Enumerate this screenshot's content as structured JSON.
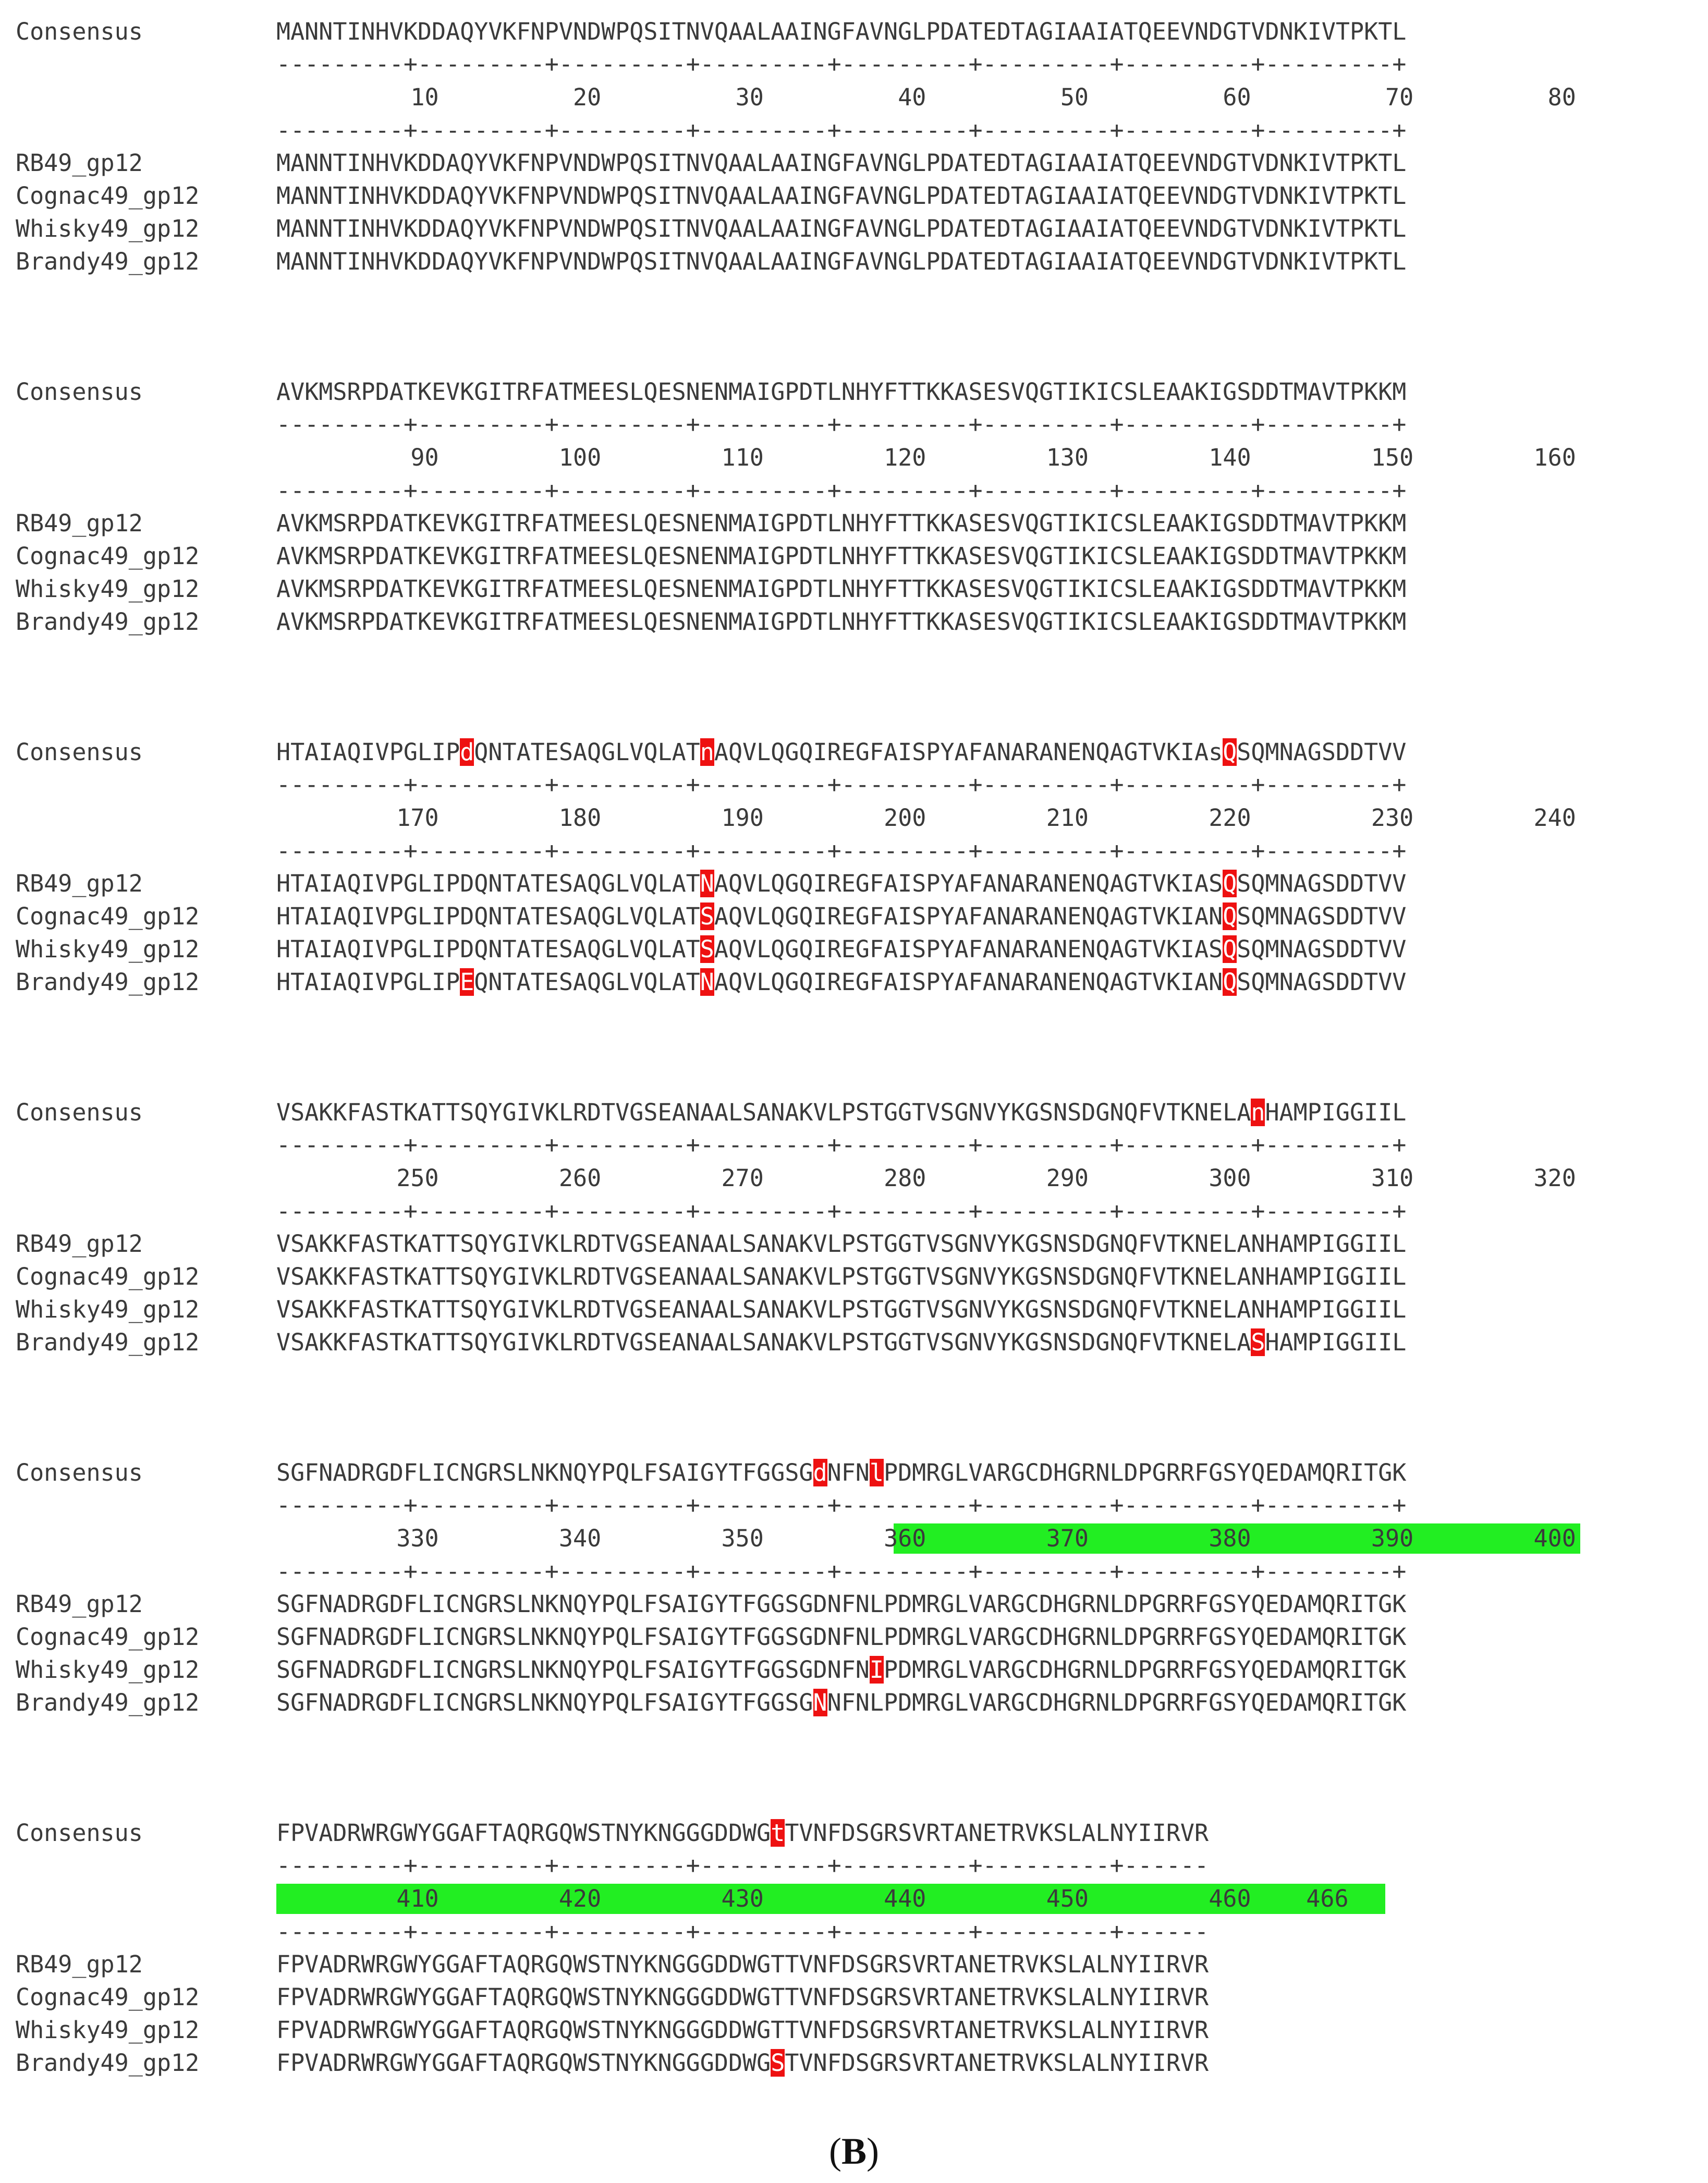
{
  "figure": {
    "caption_open": "(",
    "caption_letter": "B",
    "caption_close": ")"
  },
  "colors": {
    "highlight_bg": "#ee1111",
    "highlight_fg": "#ffffff",
    "range_band": "#22ee22",
    "text": "#3a3a3a"
  },
  "blocks": [
    {
      "consensus_label": "Consensus",
      "consensus": "MANNTINHVKDDAQYVKFNPVNDWPQSITNVQAALAAINGFAVNGLPDATEDTAGIAAIATQEEVNDGTVDNKIVTPKTL",
      "consensus_hl": [],
      "ruler_dashes": "---------+---------+---------+---------+---------+---------+---------+---------+",
      "ticks": [
        "10",
        "20",
        "30",
        "40",
        "50",
        "60",
        "70",
        "80"
      ],
      "band": null,
      "rows": [
        {
          "label": "RB49_gp12",
          "seq": "MANNTINHVKDDAQYVKFNPVNDWPQSITNVQAALAAINGFAVNGLPDATEDTAGIAAIATQEEVNDGTVDNKIVTPKTL",
          "hl": []
        },
        {
          "label": "Cognac49_gp12",
          "seq": "MANNTINHVKDDAQYVKFNPVNDWPQSITNVQAALAAINGFAVNGLPDATEDTAGIAAIATQEEVNDGTVDNKIVTPKTL",
          "hl": []
        },
        {
          "label": "Whisky49_gp12",
          "seq": "MANNTINHVKDDAQYVKFNPVNDWPQSITNVQAALAAINGFAVNGLPDATEDTAGIAAIATQEEVNDGTVDNKIVTPKTL",
          "hl": []
        },
        {
          "label": "Brandy49_gp12",
          "seq": "MANNTINHVKDDAQYVKFNPVNDWPQSITNVQAALAAINGFAVNGLPDATEDTAGIAAIATQEEVNDGTVDNKIVTPKTL",
          "hl": []
        }
      ]
    },
    {
      "consensus_label": "Consensus",
      "consensus": "AVKMSRPDATKEVKGITRFATMEESLQESNENMAIGPDTLNHYFTTKKASESVQGTIKICSLEAAKIGSDDTMAVTPKKM",
      "consensus_hl": [],
      "ruler_dashes": "---------+---------+---------+---------+---------+---------+---------+---------+",
      "ticks": [
        "90",
        "100",
        "110",
        "120",
        "130",
        "140",
        "150",
        "160"
      ],
      "band": null,
      "rows": [
        {
          "label": "RB49_gp12",
          "seq": "AVKMSRPDATKEVKGITRFATMEESLQESNENMAIGPDTLNHYFTTKKASESVQGTIKICSLEAAKIGSDDTMAVTPKKM",
          "hl": []
        },
        {
          "label": "Cognac49_gp12",
          "seq": "AVKMSRPDATKEVKGITRFATMEESLQESNENMAIGPDTLNHYFTTKKASESVQGTIKICSLEAAKIGSDDTMAVTPKKM",
          "hl": []
        },
        {
          "label": "Whisky49_gp12",
          "seq": "AVKMSRPDATKEVKGITRFATMEESLQESNENMAIGPDTLNHYFTTKKASESVQGTIKICSLEAAKIGSDDTMAVTPKKM",
          "hl": []
        },
        {
          "label": "Brandy49_gp12",
          "seq": "AVKMSRPDATKEVKGITRFATMEESLQESNENMAIGPDTLNHYFTTKKASESVQGTIKICSLEAAKIGSDDTMAVTPKKM",
          "hl": []
        }
      ]
    },
    {
      "consensus_label": "Consensus",
      "consensus": "HTAIAQIVPGLIPdQNTATESAQGLVQLATnAQVLQGQIREGFAISPYAFANARANENQAGTVKIAsQSQMNAGSDDTVV",
      "consensus_hl": [
        13,
        30,
        67
      ],
      "ruler_dashes": "---------+---------+---------+---------+---------+---------+---------+---------+",
      "ticks": [
        "170",
        "180",
        "190",
        "200",
        "210",
        "220",
        "230",
        "240"
      ],
      "band": null,
      "rows": [
        {
          "label": "RB49_gp12",
          "seq": "HTAIAQIVPGLIPDQNTATESAQGLVQLATNAQVLQGQIREGFAISPYAFANARANENQAGTVKIASQSQMNAGSDDTVV",
          "hl": [
            30,
            67
          ]
        },
        {
          "label": "Cognac49_gp12",
          "seq": "HTAIAQIVPGLIPDQNTATESAQGLVQLATSAQVLQGQIREGFAISPYAFANARANENQAGTVKIANQSQMNAGSDDTVV",
          "hl": [
            30,
            67
          ]
        },
        {
          "label": "Whisky49_gp12",
          "seq": "HTAIAQIVPGLIPDQNTATESAQGLVQLATSAQVLQGQIREGFAISPYAFANARANENQAGTVKIASQSQMNAGSDDTVV",
          "hl": [
            30,
            67
          ]
        },
        {
          "label": "Brandy49_gp12",
          "seq": "HTAIAQIVPGLIPEQNTATESAQGLVQLATNAQVLQGQIREGFAISPYAFANARANENQAGTVKIANQSQMNAGSDDTVV",
          "hl": [
            13,
            30,
            67
          ]
        }
      ]
    },
    {
      "consensus_label": "Consensus",
      "consensus": "VSAKKFASTKATTSQYGIVKLRDTVGSEANAALSANAKVLPSTGGTVSGNVYKGSNSDGNQFVTKNELAnHAMPIGGIIL",
      "consensus_hl": [
        69
      ],
      "ruler_dashes": "---------+---------+---------+---------+---------+---------+---------+---------+",
      "ticks": [
        "250",
        "260",
        "270",
        "280",
        "290",
        "300",
        "310",
        "320"
      ],
      "band": null,
      "rows": [
        {
          "label": "RB49_gp12",
          "seq": "VSAKKFASTKATTSQYGIVKLRDTVGSEANAALSANAKVLPSTGGTVSGNVYKGSNSDGNQFVTKNELANHAMPIGGIIL",
          "hl": []
        },
        {
          "label": "Cognac49_gp12",
          "seq": "VSAKKFASTKATTSQYGIVKLRDTVGSEANAALSANAKVLPSTGGTVSGNVYKGSNSDGNQFVTKNELANHAMPIGGIIL",
          "hl": []
        },
        {
          "label": "Whisky49_gp12",
          "seq": "VSAKKFASTKATTSQYGIVKLRDTVGSEANAALSANAKVLPSTGGTVSGNVYKGSNSDGNQFVTKNELANHAMPIGGIIL",
          "hl": []
        },
        {
          "label": "Brandy49_gp12",
          "seq": "VSAKKFASTKATTSQYGIVKLRDTVGSEANAALSANAKVLPSTGGTVSGNVYKGSNSDGNQFVTKNELASHAMPIGGIIL",
          "hl": [
            69
          ]
        }
      ]
    },
    {
      "consensus_label": "Consensus",
      "consensus": "SGFNADRGDFLICNGRSLNKNQYPQLFSAIGYTFGGSGdNFNlPDMRGLVARGCDHGRNLDPGRRFGSYQEDAMQRITGK",
      "consensus_hl": [
        38,
        42
      ],
      "ruler_dashes": "---------+---------+---------+---------+---------+---------+---------+---------+",
      "ticks": [
        "330",
        "340",
        "350",
        "360",
        "370",
        "380",
        "390",
        "400"
      ],
      "band": {
        "from_residue": 358,
        "to_residue": 400
      },
      "rows": [
        {
          "label": "RB49_gp12",
          "seq": "SGFNADRGDFLICNGRSLNKNQYPQLFSAIGYTFGGSGDNFNLPDMRGLVARGCDHGRNLDPGRRFGSYQEDAMQRITGK",
          "hl": []
        },
        {
          "label": "Cognac49_gp12",
          "seq": "SGFNADRGDFLICNGRSLNKNQYPQLFSAIGYTFGGSGDNFNLPDMRGLVARGCDHGRNLDPGRRFGSYQEDAMQRITGK",
          "hl": []
        },
        {
          "label": "Whisky49_gp12",
          "seq": "SGFNADRGDFLICNGRSLNKNQYPQLFSAIGYTFGGSGDNFNIPDMRGLVARGCDHGRNLDPGRRFGSYQEDAMQRITGK",
          "hl": [
            42
          ]
        },
        {
          "label": "Brandy49_gp12",
          "seq": "SGFNADRGDFLICNGRSLNKNQYPQLFSAIGYTFGGSGNNFNLPDMRGLVARGCDHGRNLDPGRRFGSYQEDAMQRITGK",
          "hl": [
            38
          ]
        }
      ]
    },
    {
      "consensus_label": "Consensus",
      "consensus": "FPVADRWRGWYGGAFTAQRGQWSTNYKNGGGDDWGtTVNFDSGRSVRTANETRVKSLALNYIIRVR",
      "consensus_hl": [
        35
      ],
      "ruler_dashes": "---------+---------+---------+---------+---------+---------+------",
      "ticks": [
        "410",
        "420",
        "430",
        "440",
        "450",
        "460",
        "466"
      ],
      "band": {
        "from_residue": 400,
        "to_residue": 468
      },
      "rows": [
        {
          "label": "RB49_gp12",
          "seq": "FPVADRWRGWYGGAFTAQRGQWSTNYKNGGGDDWGTTVNFDSGRSVRTANETRVKSLALNYIIRVR",
          "hl": []
        },
        {
          "label": "Cognac49_gp12",
          "seq": "FPVADRWRGWYGGAFTAQRGQWSTNYKNGGGDDWGTTVNFDSGRSVRTANETRVKSLALNYIIRVR",
          "hl": []
        },
        {
          "label": "Whisky49_gp12",
          "seq": "FPVADRWRGWYGGAFTAQRGQWSTNYKNGGGDDWGTTVNFDSGRSVRTANETRVKSLALNYIIRVR",
          "hl": []
        },
        {
          "label": "Brandy49_gp12",
          "seq": "FPVADRWRGWYGGAFTAQRGQWSTNYKNGGGDDWGSTVNFDSGRSVRTANETRVKSLALNYIIRVR",
          "hl": [
            35
          ]
        }
      ]
    }
  ]
}
